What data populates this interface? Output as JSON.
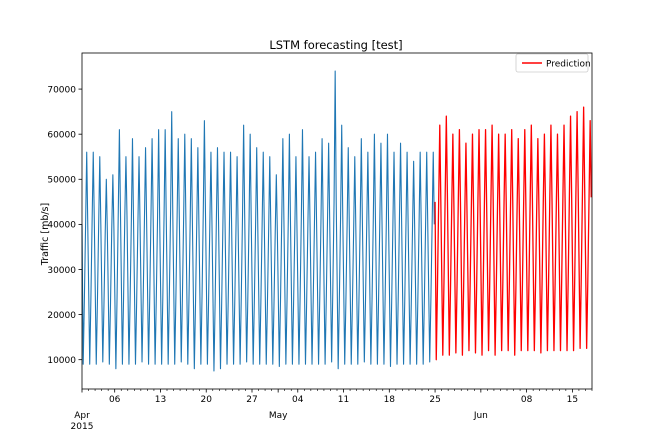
{
  "chart_data": {
    "type": "line",
    "title": "LSTM forecasting [test]",
    "xlabel": "",
    "ylabel": "Traffic [mb/s]",
    "xlim": [
      "2015-04-01",
      "2015-06-18"
    ],
    "ylim": [
      3500,
      78000
    ],
    "grid": false,
    "legend_position": "upper-right",
    "y_ticks": [
      10000,
      20000,
      30000,
      40000,
      50000,
      60000,
      70000
    ],
    "y_tick_labels": [
      "10000",
      "20000",
      "30000",
      "40000",
      "50000",
      "60000",
      "70000"
    ],
    "x_major_ticks": [
      {
        "date": "2015-04-06",
        "label": "06"
      },
      {
        "date": "2015-04-13",
        "label": "13"
      },
      {
        "date": "2015-04-20",
        "label": "20"
      },
      {
        "date": "2015-04-27",
        "label": "27"
      },
      {
        "date": "2015-05-04",
        "label": "04"
      },
      {
        "date": "2015-05-11",
        "label": "11"
      },
      {
        "date": "2015-05-18",
        "label": "18"
      },
      {
        "date": "2015-05-25",
        "label": "25"
      },
      {
        "date": "2015-06-08",
        "label": "08"
      },
      {
        "date": "2015-06-15",
        "label": "15"
      }
    ],
    "x_month_labels": [
      {
        "date": "2015-04-01",
        "label": "Apr",
        "sublabel": "2015"
      },
      {
        "date": "2015-05-01",
        "label": "May",
        "sublabel": ""
      },
      {
        "date": "2015-06-01",
        "label": "Jun",
        "sublabel": ""
      }
    ],
    "series": [
      {
        "name": "",
        "color": "#1f77b4",
        "cycle": "daily",
        "start": "2015-04-01",
        "end": "2015-05-25",
        "daily_max": [
          56000,
          56000,
          55000,
          50000,
          51000,
          61000,
          55000,
          59000,
          55000,
          57000,
          59000,
          61000,
          61000,
          65000,
          59000,
          60000,
          59000,
          57000,
          63000,
          56000,
          57000,
          56000,
          56000,
          55000,
          62000,
          60000,
          57000,
          56000,
          55000,
          51000,
          59000,
          60000,
          55000,
          61000,
          55000,
          56000,
          59000,
          58000,
          74000,
          62000,
          57000,
          55000,
          59000,
          56000,
          60000,
          58000,
          60000,
          56000,
          58000,
          56000,
          54000,
          56000,
          56000,
          56000
        ],
        "daily_min": [
          9000,
          9000,
          9000,
          9500,
          9000,
          8000,
          9000,
          9000,
          9000,
          9500,
          9000,
          9000,
          9000,
          9000,
          9000,
          9500,
          9000,
          8000,
          9000,
          9000,
          7500,
          8000,
          9000,
          9000,
          9000,
          9500,
          9000,
          9000,
          9000,
          9000,
          8500,
          9000,
          9000,
          9000,
          9000,
          9000,
          9000,
          9000,
          9500,
          8000,
          9000,
          9000,
          9000,
          9500,
          9000,
          9000,
          9000,
          8500,
          9000,
          9000,
          9000,
          9000,
          9000,
          9500
        ],
        "daily_mid": [
          40000,
          41000,
          40000,
          38000,
          39000,
          43000,
          42000,
          41000,
          40000,
          41000,
          42000,
          41000,
          42000,
          43000,
          42000,
          42000,
          41000,
          40000,
          43000,
          40000,
          41000,
          40000,
          40000,
          39000,
          42000,
          41000,
          40000,
          40000,
          39000,
          38000,
          41000,
          41000,
          39000,
          42000,
          40000,
          40000,
          41000,
          41000,
          45000,
          42000,
          40000,
          39000,
          41000,
          40000,
          41000,
          41000,
          41000,
          40000,
          41000,
          40000,
          39000,
          40000,
          40000,
          40000
        ]
      },
      {
        "name": "Prediction",
        "color": "#ff0000",
        "cycle": "daily",
        "start": "2015-05-25",
        "end": "2015-06-18",
        "daily_max": [
          62000,
          64000,
          60000,
          61000,
          58000,
          60000,
          61000,
          61000,
          62000,
          60000,
          60000,
          61000,
          59000,
          61000,
          62000,
          59000,
          60000,
          62000,
          60000,
          62000,
          64000,
          65000,
          66000,
          63000
        ],
        "daily_min": [
          10000,
          11000,
          11000,
          11500,
          11000,
          12000,
          11500,
          11000,
          12000,
          11000,
          12000,
          12000,
          11000,
          12000,
          12000,
          12000,
          11500,
          12000,
          12000,
          12000,
          12000,
          12000,
          12500,
          12500
        ],
        "daily_mid": [
          45000,
          47000,
          44000,
          45000,
          43000,
          44000,
          45000,
          45000,
          46000,
          44000,
          45000,
          45000,
          44000,
          45000,
          46000,
          44000,
          45000,
          46000,
          45000,
          46000,
          47000,
          48000,
          48000,
          46000
        ]
      }
    ]
  }
}
